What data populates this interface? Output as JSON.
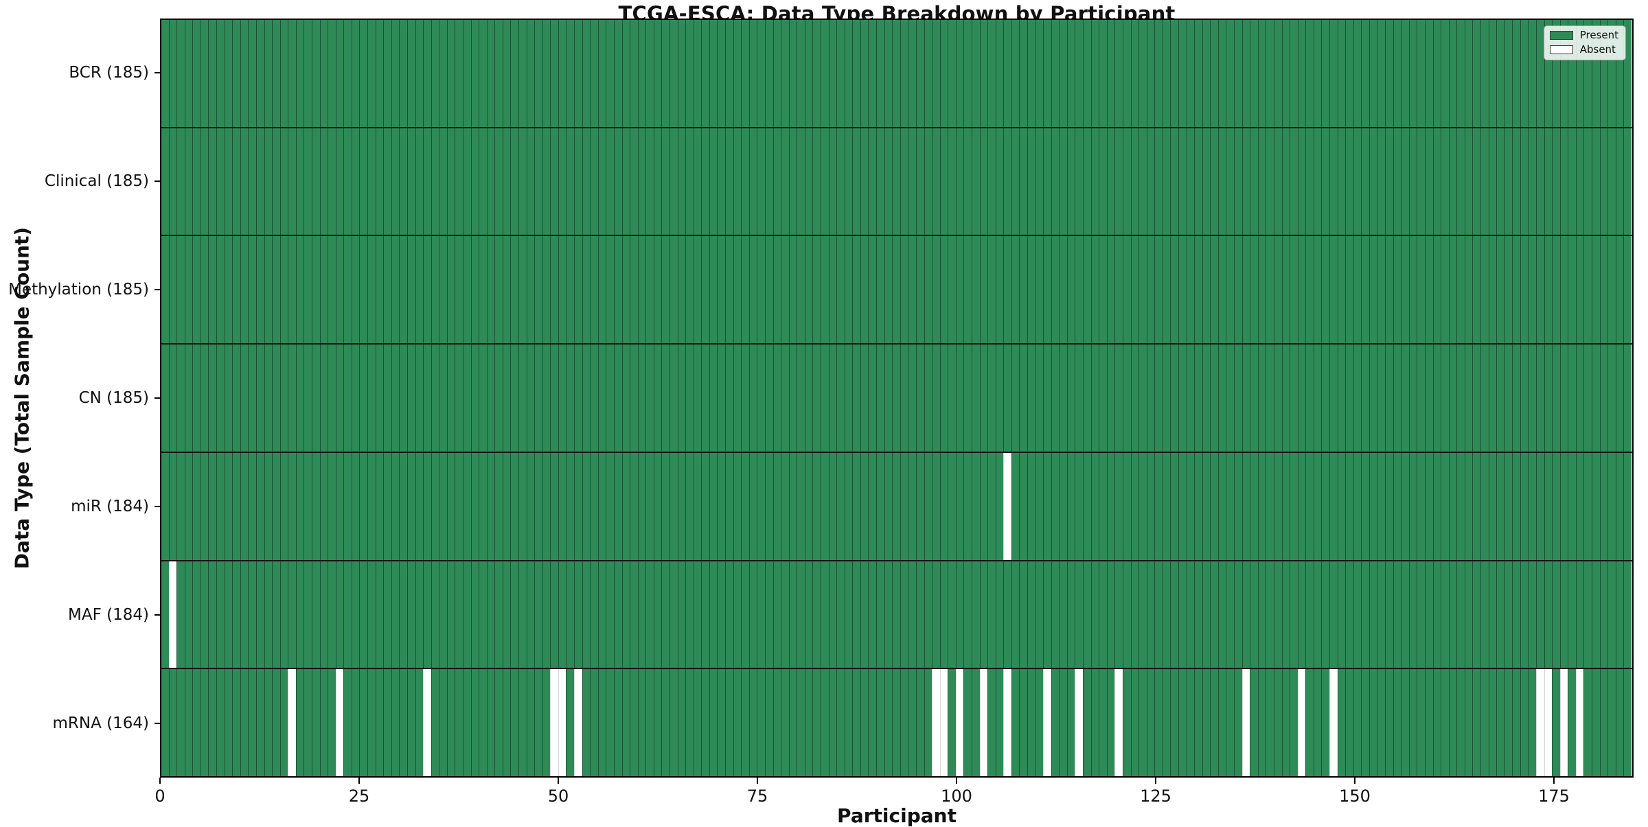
{
  "title": "TCGA-ESCA: Data Type Breakdown by Participant",
  "x_axis": {
    "label": "Participant",
    "ticks": [
      0,
      25,
      50,
      75,
      100,
      125,
      150,
      175
    ]
  },
  "y_axis": {
    "label": "Data Type (Total Sample Count)"
  },
  "legend": [
    {
      "label": "Present",
      "swatch": "present"
    },
    {
      "label": "Absent",
      "swatch": "absent"
    }
  ],
  "colors": {
    "present": "#2e8b57",
    "absent": "#ffffff"
  },
  "chart_data": {
    "type": "heatmap",
    "n_participants": 185,
    "x_range": [
      0,
      185
    ],
    "grid": false,
    "legend_position": "upper right",
    "rows": [
      {
        "label": "BCR (185)",
        "count": 185,
        "absent_indices": []
      },
      {
        "label": "Clinical (185)",
        "count": 185,
        "absent_indices": []
      },
      {
        "label": "Methylation (185)",
        "count": 185,
        "absent_indices": []
      },
      {
        "label": "CN (185)",
        "count": 185,
        "absent_indices": []
      },
      {
        "label": "miR (184)",
        "count": 184,
        "absent_indices": [
          106
        ]
      },
      {
        "label": "MAF (184)",
        "count": 184,
        "absent_indices": [
          1
        ]
      },
      {
        "label": "mRNA (164)",
        "count": 164,
        "absent_indices": [
          16,
          22,
          33,
          49,
          50,
          52,
          97,
          98,
          100,
          103,
          106,
          111,
          115,
          120,
          136,
          143,
          147,
          173,
          174,
          176,
          178
        ]
      }
    ]
  }
}
